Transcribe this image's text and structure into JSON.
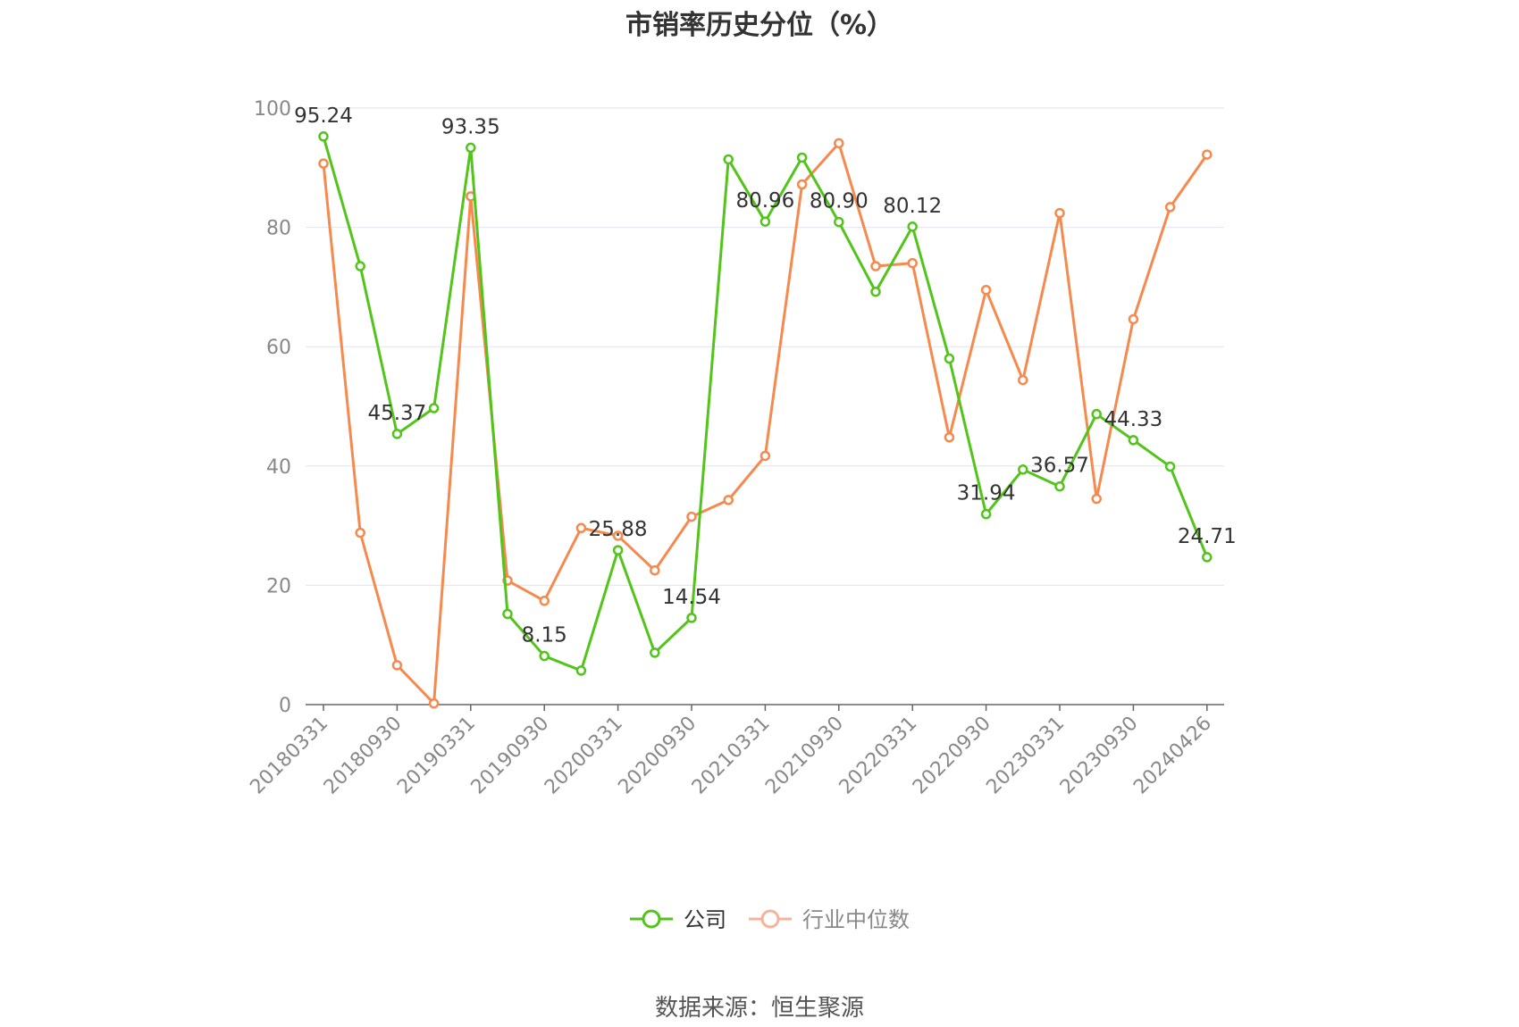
{
  "title": "市销率历史分位（%）",
  "source_text": "数据来源：恒生聚源",
  "colors": {
    "company": "#52c41a",
    "industry": "#f5894e",
    "grid": "#e0e3ef",
    "axis": "#666666",
    "tick_text": "#888888",
    "label_text": "#333333"
  },
  "chart_data": {
    "type": "line",
    "title": "市销率历史分位（%）",
    "ylim": [
      0,
      100
    ],
    "y_ticks": [
      0,
      20,
      40,
      60,
      80,
      100
    ],
    "x": [
      "20180331",
      "20180630",
      "20180930",
      "20181231",
      "20190331",
      "20190630",
      "20190930",
      "20191231",
      "20200331",
      "20200630",
      "20200930",
      "20201231",
      "20210331",
      "20210630",
      "20210930",
      "20211231",
      "20220331",
      "20220630",
      "20220930",
      "20221231",
      "20230331",
      "20230630",
      "20230930",
      "20231231",
      "20240426"
    ],
    "x_tick_labels": [
      "20180331",
      "20180930",
      "20190331",
      "20190930",
      "20200331",
      "20200930",
      "20210331",
      "20210930",
      "20220331",
      "20220930",
      "20230331",
      "20230930",
      "20240426"
    ],
    "grid": true,
    "legend_position": "bottom-center",
    "series": [
      {
        "name": "公司",
        "color": "#52c41a",
        "values": [
          95.24,
          73.5,
          45.37,
          49.7,
          93.35,
          15.2,
          8.15,
          5.7,
          25.88,
          8.7,
          14.54,
          91.4,
          80.96,
          91.7,
          80.9,
          69.2,
          80.12,
          58.0,
          31.94,
          39.4,
          36.57,
          48.7,
          44.33,
          39.9,
          24.71
        ],
        "labels": [
          "95.24",
          "",
          "45.37",
          "",
          "93.35",
          "",
          "8.15",
          "",
          "25.88",
          "",
          "14.54",
          "",
          "80.96",
          "",
          "80.90",
          "",
          "80.12",
          "",
          "31.94",
          "",
          "36.57",
          "",
          "44.33",
          "",
          "24.71"
        ]
      },
      {
        "name": "行业中位数",
        "color": "#f5894e",
        "values": [
          90.7,
          28.8,
          6.6,
          0.2,
          85.2,
          20.8,
          17.4,
          29.6,
          28.3,
          22.5,
          31.5,
          34.3,
          41.7,
          87.2,
          94.1,
          73.5,
          74.0,
          44.8,
          69.5,
          54.4,
          82.4,
          34.5,
          64.6,
          83.4,
          92.2
        ],
        "labels": []
      }
    ]
  }
}
